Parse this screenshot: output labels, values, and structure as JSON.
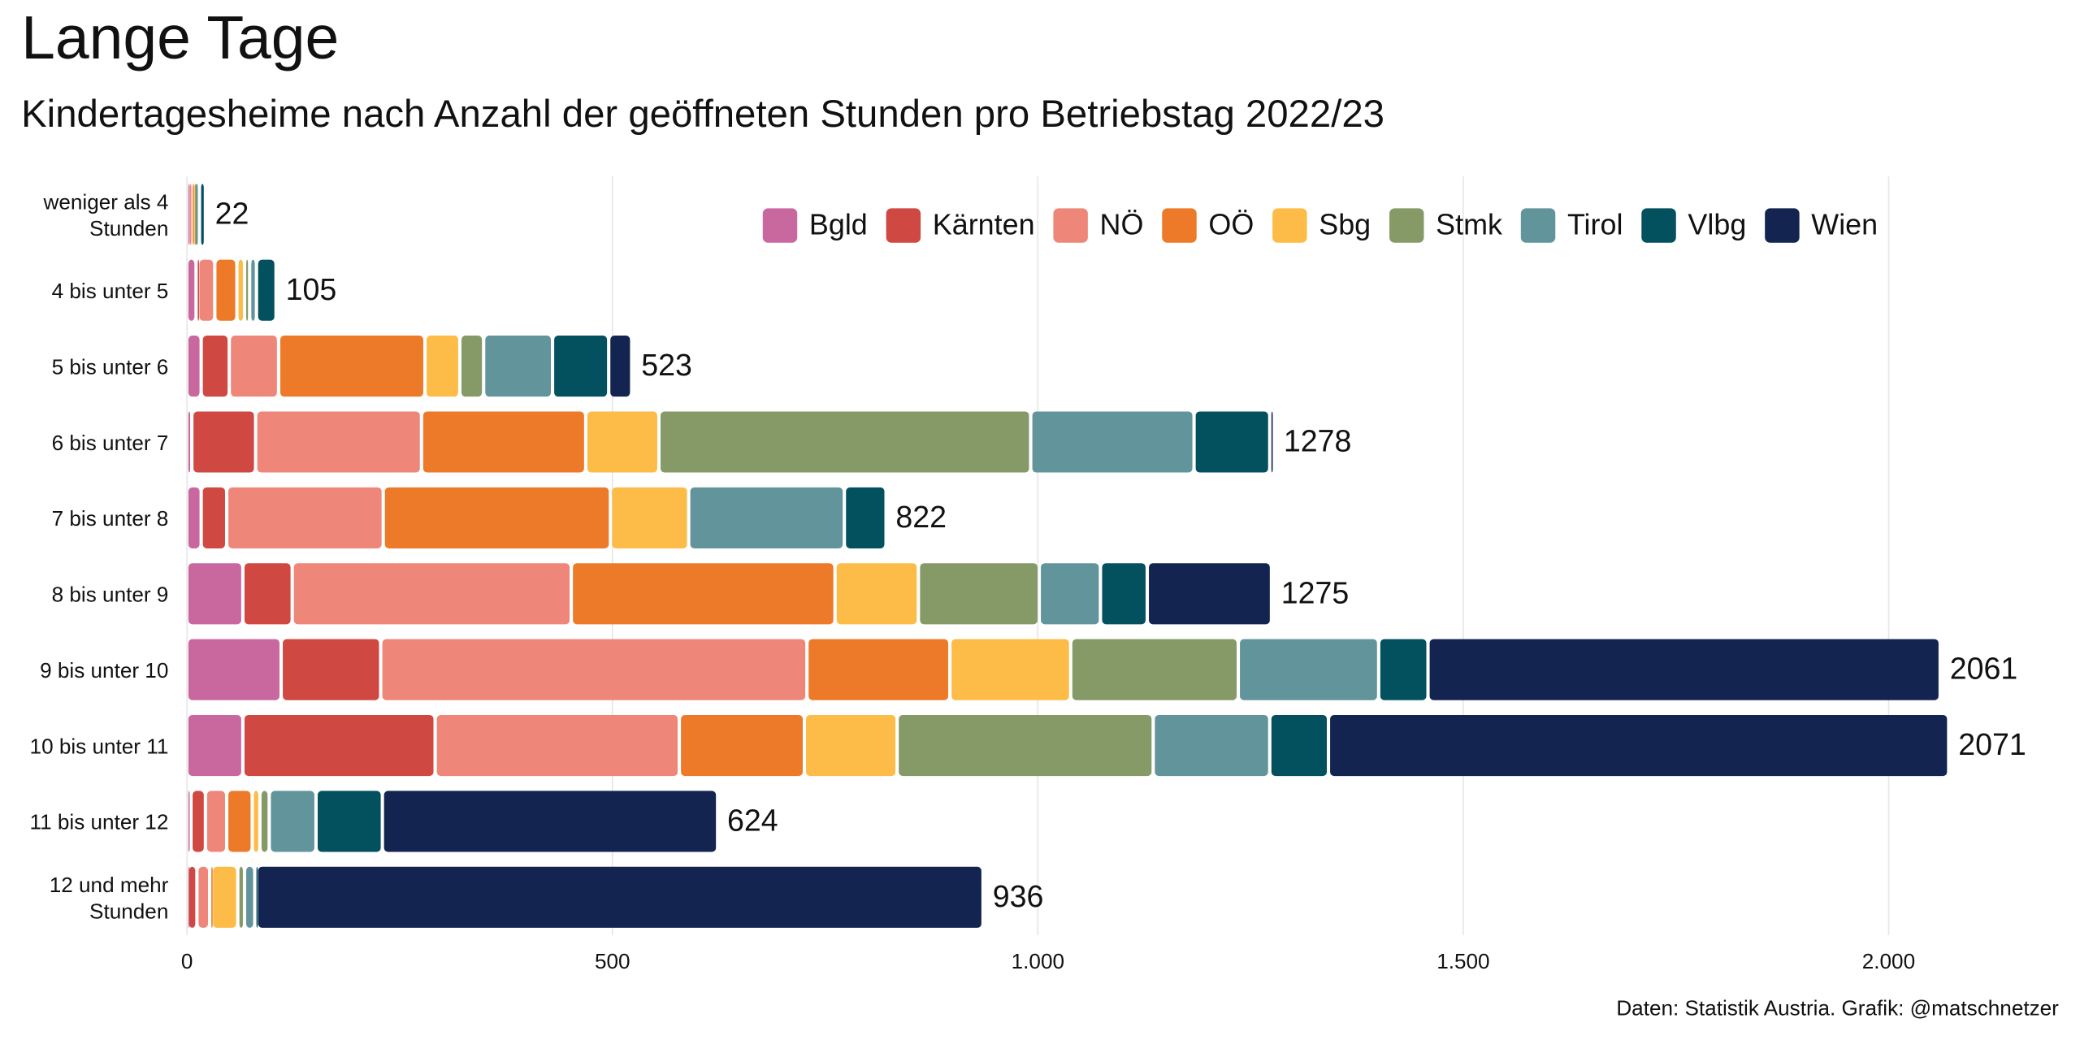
{
  "chart_data": {
    "type": "stacked-barh",
    "title": "Lange Tage",
    "subtitle": "Kindertagesheime nach Anzahl der geöffneten Stunden pro Betriebstag 2022/23",
    "caption": "Daten: Statistik Austria. Grafik: @matschnetzer",
    "categories": [
      "weniger als 4\nStunden",
      "4 bis unter 5",
      "5 bis unter 6",
      "6 bis unter 7",
      "7 bis unter 8",
      "8 bis unter 9",
      "9 bis unter 10",
      "10 bis unter 11",
      "11 bis unter 12",
      "12 und mehr\nStunden"
    ],
    "series": [
      {
        "name": "Bgld",
        "color": "#c9689f",
        "values": [
          2,
          11,
          17,
          6,
          17,
          66,
          111,
          66,
          5,
          1
        ]
      },
      {
        "name": "Kärnten",
        "color": "#cf4842",
        "values": [
          0,
          2,
          33,
          75,
          30,
          58,
          117,
          226,
          17,
          11
        ]
      },
      {
        "name": "NÖ",
        "color": "#ee877a",
        "values": [
          3,
          20,
          58,
          195,
          184,
          328,
          501,
          287,
          25,
          15
        ]
      },
      {
        "name": "OÖ",
        "color": "#ec7a28",
        "values": [
          2,
          26,
          172,
          193,
          267,
          310,
          168,
          147,
          30,
          2
        ]
      },
      {
        "name": "Sbg",
        "color": "#fdbb47",
        "values": [
          1,
          9,
          41,
          86,
          92,
          98,
          142,
          109,
          9,
          31
        ]
      },
      {
        "name": "Stmk",
        "color": "#869a68",
        "values": [
          1,
          6,
          28,
          437,
          0,
          142,
          197,
          301,
          11,
          8
        ]
      },
      {
        "name": "Tirol",
        "color": "#62949b",
        "values": [
          6,
          8,
          81,
          192,
          183,
          72,
          165,
          137,
          55,
          12
        ]
      },
      {
        "name": "Vlbg",
        "color": "#03505f",
        "values": [
          7,
          23,
          66,
          89,
          49,
          55,
          58,
          69,
          78,
          2
        ]
      },
      {
        "name": "Wien",
        "color": "#142451",
        "values": [
          0,
          0,
          27,
          5,
          0,
          146,
          602,
          729,
          394,
          854
        ]
      }
    ],
    "totals": [
      22,
      105,
      523,
      1278,
      822,
      1275,
      2061,
      2071,
      624,
      936
    ],
    "xlim": [
      0,
      2200
    ],
    "xticks": [
      0,
      500,
      {
        "value": 1000,
        "label": "1.000"
      },
      {
        "value": 1500,
        "label": "1.500"
      },
      {
        "value": 2000,
        "label": "2.000"
      }
    ],
    "grid": true,
    "legend": "top"
  }
}
